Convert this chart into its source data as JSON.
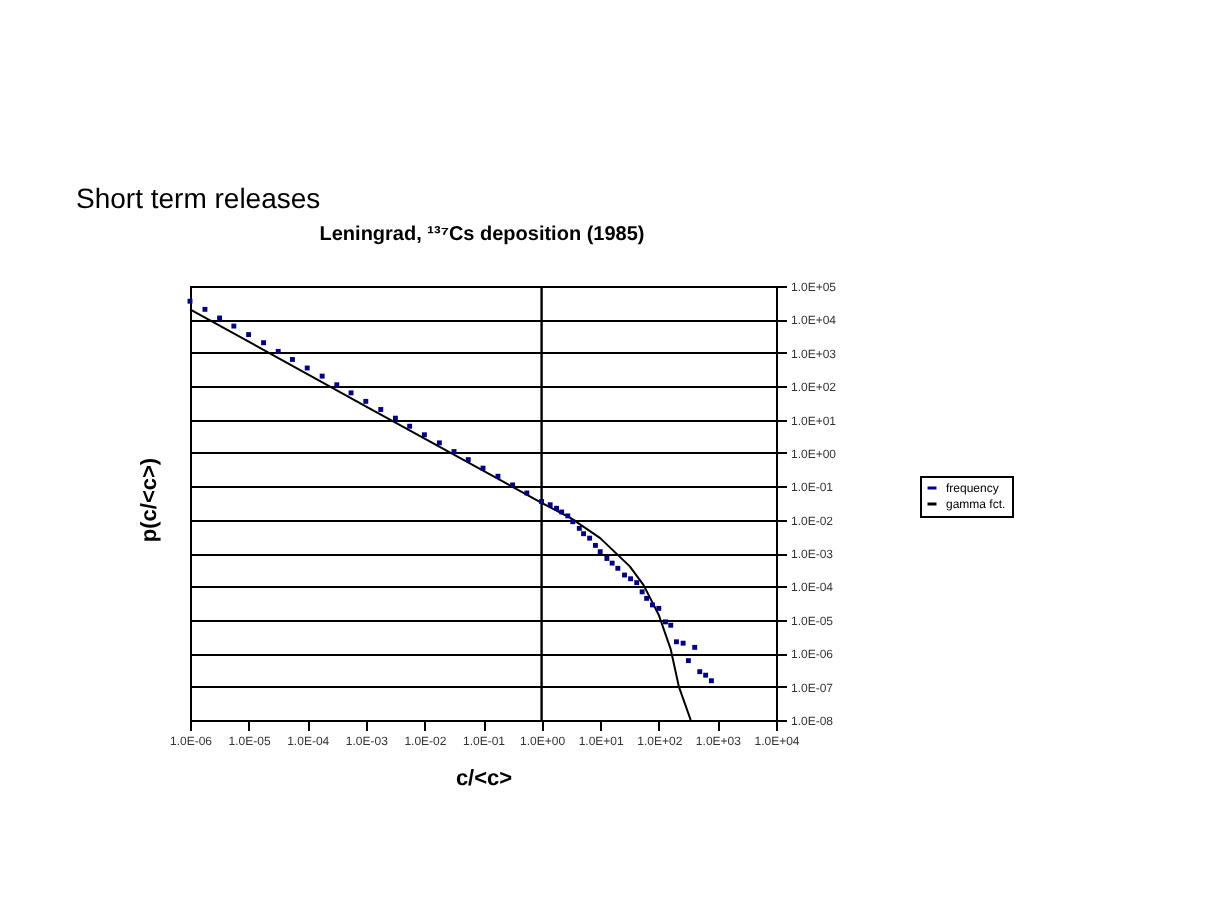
{
  "chart_data": {
    "type": "scatter",
    "title": "Short term releases",
    "subtitle": "Leningrad, ¹³⁷Cs deposition (1985)",
    "xlabel": "c/<c>",
    "ylabel": "p(c/<c>)",
    "log": "xy",
    "grid": "y",
    "legend": "right",
    "xlim": [
      1e-06,
      10000.0
    ],
    "ylim": [
      1e-08,
      100000.0
    ],
    "xticks": [
      {
        "value": 1e-06,
        "label": "1.0E-06"
      },
      {
        "value": 1e-05,
        "label": "1.0E-05"
      },
      {
        "value": 0.0001,
        "label": "1.0E-04"
      },
      {
        "value": 0.001,
        "label": "1.0E-03"
      },
      {
        "value": 0.01,
        "label": "1.0E-02"
      },
      {
        "value": 0.1,
        "label": "1.0E-01"
      },
      {
        "value": 1,
        "label": "1.0E+00"
      },
      {
        "value": 10,
        "label": "1.0E+01"
      },
      {
        "value": 100,
        "label": "1.0E+02"
      },
      {
        "value": 1000,
        "label": "1.0E+03"
      },
      {
        "value": 10000,
        "label": "1.0E+04"
      }
    ],
    "yticks": [
      {
        "value": 1e-08,
        "label": "1.0E-08"
      },
      {
        "value": 1e-07,
        "label": "1.0E-07"
      },
      {
        "value": 1e-06,
        "label": "1.0E-06"
      },
      {
        "value": 1e-05,
        "label": "1.0E-05"
      },
      {
        "value": 0.0001,
        "label": "1.0E-04"
      },
      {
        "value": 0.001,
        "label": "1.0E-03"
      },
      {
        "value": 0.01,
        "label": "1.0E-02"
      },
      {
        "value": 0.1,
        "label": "1.0E-01"
      },
      {
        "value": 1,
        "label": "1.0E+00"
      },
      {
        "value": 10,
        "label": "1.0E+01"
      },
      {
        "value": 100,
        "label": "1.0E+02"
      },
      {
        "value": 1000,
        "label": "1.0E+03"
      },
      {
        "value": 10000,
        "label": "1.0E+04"
      },
      {
        "value": 100000,
        "label": "1.0E+05"
      }
    ],
    "ref_lines": [
      {
        "axis": "x",
        "value": 1,
        "color": "#000000"
      }
    ],
    "series": [
      {
        "name": "frequency",
        "type": "scatter",
        "marker": "square",
        "color": "#000080",
        "x": [
          1e-06,
          1.8e-06,
          3.2e-06,
          5.6e-06,
          1e-05,
          1.8e-05,
          3.2e-05,
          5.6e-05,
          0.0001,
          0.00018,
          0.00032,
          0.00056,
          0.001,
          0.0018,
          0.0032,
          0.0056,
          0.01,
          0.018,
          0.032,
          0.056,
          0.1,
          0.18,
          0.32,
          0.56,
          1.0,
          1.4,
          1.8,
          2.2,
          2.8,
          3.4,
          4.4,
          5.2,
          6.6,
          8.3,
          10,
          13,
          16,
          20,
          26,
          33,
          42,
          52,
          62,
          78,
          100,
          130,
          160,
          200,
          260,
          320,
          410,
          500,
          630,
          790
        ],
        "values": [
          35000.0,
          20000.0,
          11000.0,
          6300.0,
          3500.0,
          2000.0,
          1100.0,
          630,
          350,
          200,
          110,
          63,
          35,
          20,
          11,
          6.3,
          3.5,
          2.0,
          1.1,
          0.63,
          0.35,
          0.2,
          0.11,
          0.063,
          0.035,
          0.028,
          0.022,
          0.017,
          0.013,
          0.0087,
          0.0055,
          0.0038,
          0.0028,
          0.0017,
          0.0011,
          0.00069,
          0.0005,
          0.00035,
          0.00022,
          0.00017,
          0.00013,
          6.9e-05,
          4.4e-05,
          2.8e-05,
          2.2e-05,
          8.7e-06,
          6.9e-06,
          2.2e-06,
          2e-06,
          6e-07,
          1.5e-06,
          2.8e-07,
          2.2e-07,
          1.5e-07
        ]
      },
      {
        "name": "gamma fct.",
        "type": "line",
        "marker": "none",
        "line_style": "solid",
        "color": "#000000",
        "x": [
          1e-06,
          0.001,
          1,
          3.2,
          10,
          32,
          55,
          100,
          160,
          220,
          350
        ],
        "values": [
          20000.0,
          25,
          0.032,
          0.011,
          0.0028,
          0.0004,
          0.00011,
          1.4e-05,
          1.3e-06,
          1e-07,
          1e-08
        ]
      }
    ]
  }
}
